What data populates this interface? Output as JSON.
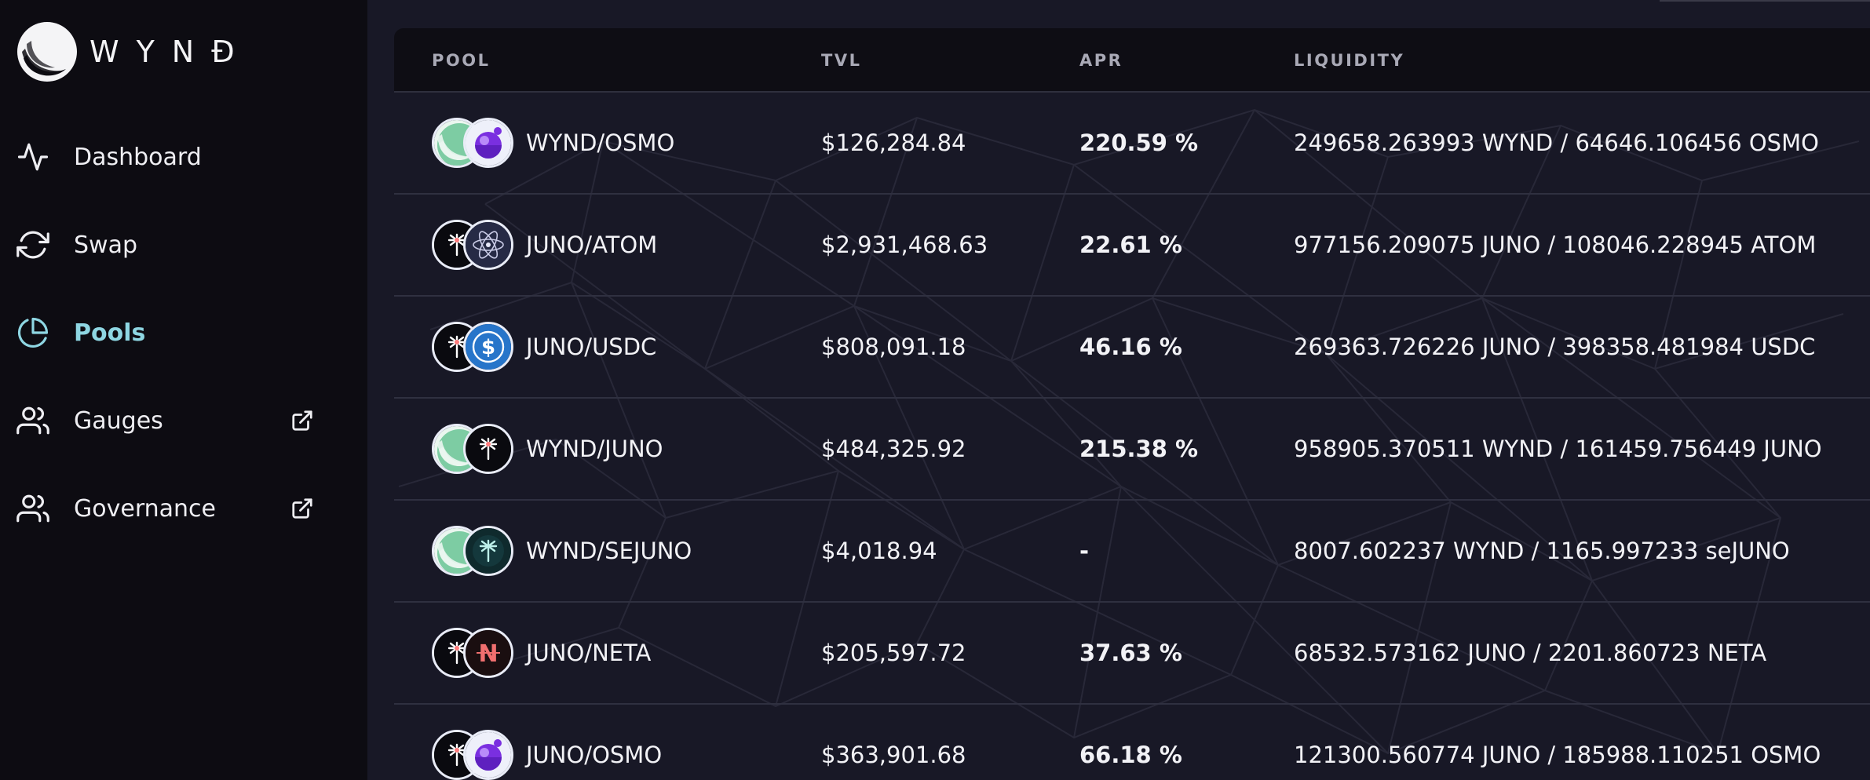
{
  "brand": {
    "name": "WYNĐ"
  },
  "colors": {
    "accent": "#8ed6e2",
    "sidebar_bg": "#0d0c12",
    "main_bg": "#181826",
    "header_bg": "#0e0d14",
    "text": "#f2f2f6",
    "muted": "#a9a9b6"
  },
  "nav": {
    "items": [
      {
        "label": "Dashboard",
        "icon": "activity-icon",
        "active": false,
        "external": false
      },
      {
        "label": "Swap",
        "icon": "refresh-icon",
        "active": false,
        "external": false
      },
      {
        "label": "Pools",
        "icon": "pie-chart-icon",
        "active": true,
        "external": false
      },
      {
        "label": "Gauges",
        "icon": "users-icon",
        "active": false,
        "external": true
      },
      {
        "label": "Governance",
        "icon": "users-icon",
        "active": false,
        "external": true
      }
    ]
  },
  "table": {
    "headers": {
      "pool": "POOL",
      "tvl": "TVL",
      "apr": "APR",
      "liquidity": "LIQUIDITY"
    },
    "rows": [
      {
        "pool": "WYND/OSMO",
        "tokens": [
          "wynd",
          "osmo"
        ],
        "tvl": "$126,284.84",
        "apr": "220.59 %",
        "liquidity": "249658.263993 WYND / 64646.106456 OSMO"
      },
      {
        "pool": "JUNO/ATOM",
        "tokens": [
          "juno",
          "atom"
        ],
        "tvl": "$2,931,468.63",
        "apr": "22.61 %",
        "liquidity": "977156.209075 JUNO / 108046.228945 ATOM"
      },
      {
        "pool": "JUNO/USDC",
        "tokens": [
          "juno",
          "usdc"
        ],
        "tvl": "$808,091.18",
        "apr": "46.16 %",
        "liquidity": "269363.726226 JUNO / 398358.481984 USDC"
      },
      {
        "pool": "WYND/JUNO",
        "tokens": [
          "wynd",
          "juno"
        ],
        "tvl": "$484,325.92",
        "apr": "215.38 %",
        "liquidity": "958905.370511 WYND / 161459.756449 JUNO"
      },
      {
        "pool": "WYND/SEJUNO",
        "tokens": [
          "wynd",
          "sejuno"
        ],
        "tvl": "$4,018.94",
        "apr": "-",
        "liquidity": "8007.602237 WYND / 1165.997233 seJUNO"
      },
      {
        "pool": "JUNO/NETA",
        "tokens": [
          "juno",
          "neta"
        ],
        "tvl": "$205,597.72",
        "apr": "37.63 %",
        "liquidity": "68532.573162 JUNO / 2201.860723 NETA"
      },
      {
        "pool": "JUNO/OSMO",
        "tokens": [
          "juno",
          "osmo"
        ],
        "tvl": "$363,901.68",
        "apr": "66.18 %",
        "liquidity": "121300.560774 JUNO / 185988.110251 OSMO"
      }
    ]
  }
}
